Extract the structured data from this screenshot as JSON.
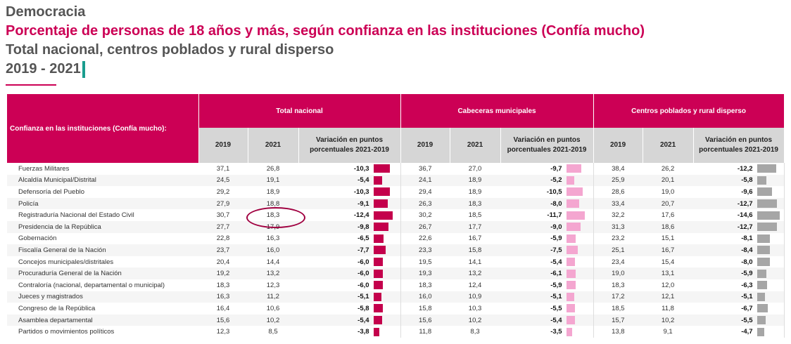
{
  "header": {
    "section": "Democracia",
    "title": "Porcentaje de personas de 18 años y más, según confianza en las instituciones (Confía mucho)",
    "subtitle": "Total nacional, centros poblados y rural disperso",
    "period": "2019 - 2021"
  },
  "table": {
    "row_header": "Confianza en las instituciones (Confía mucho):",
    "groups": [
      "Total nacional",
      "Cabeceras municipales",
      "Centros poblados y rural disperso"
    ],
    "col_2019": "2019",
    "col_2021": "2021",
    "col_var": "Variación en puntos porcentuales 2021-2019",
    "bar_colors": [
      "#c4004c",
      "#f4a6d0",
      "#a6a6a6"
    ],
    "rows": [
      {
        "name": "Fuerzas Militares",
        "t": [
          "37,1",
          "26,8",
          "-10,3"
        ],
        "c": [
          "36,7",
          "27,0",
          "-9,7"
        ],
        "r": [
          "38,4",
          "26,2",
          "-12,2"
        ]
      },
      {
        "name": "Alcaldía Municipal/Distrital",
        "t": [
          "24,5",
          "19,1",
          "-5,4"
        ],
        "c": [
          "24,1",
          "18,9",
          "-5,2"
        ],
        "r": [
          "25,9",
          "20,1",
          "-5,8"
        ]
      },
      {
        "name": "Defensoría del Pueblo",
        "t": [
          "29,2",
          "18,9",
          "-10,3"
        ],
        "c": [
          "29,4",
          "18,9",
          "-10,5"
        ],
        "r": [
          "28,6",
          "19,0",
          "-9,6"
        ]
      },
      {
        "name": "Policía",
        "t": [
          "27,9",
          "18,8",
          "-9,1"
        ],
        "c": [
          "26,3",
          "18,3",
          "-8,0"
        ],
        "r": [
          "33,4",
          "20,7",
          "-12,7"
        ]
      },
      {
        "name": "Registraduría Nacional del Estado Civil",
        "t": [
          "30,7",
          "18,3",
          "-12,4"
        ],
        "c": [
          "30,2",
          "18,5",
          "-11,7"
        ],
        "r": [
          "32,2",
          "17,6",
          "-14,6"
        ]
      },
      {
        "name": "Presidencia de la República",
        "t": [
          "27,7",
          "17,9",
          "-9,8"
        ],
        "c": [
          "26,7",
          "17,7",
          "-9,0"
        ],
        "r": [
          "31,3",
          "18,6",
          "-12,7"
        ]
      },
      {
        "name": "Gobernación",
        "t": [
          "22,8",
          "16,3",
          "-6,5"
        ],
        "c": [
          "22,6",
          "16,7",
          "-5,9"
        ],
        "r": [
          "23,2",
          "15,1",
          "-8,1"
        ]
      },
      {
        "name": "Fiscalía General de la Nación",
        "t": [
          "23,7",
          "16,0",
          "-7,7"
        ],
        "c": [
          "23,3",
          "15,8",
          "-7,5"
        ],
        "r": [
          "25,1",
          "16,7",
          "-8,4"
        ]
      },
      {
        "name": "Concejos municipales/distritales",
        "t": [
          "20,4",
          "14,4",
          "-6,0"
        ],
        "c": [
          "19,5",
          "14,1",
          "-5,4"
        ],
        "r": [
          "23,4",
          "15,4",
          "-8,0"
        ]
      },
      {
        "name": "Procuraduría General de la Nación",
        "t": [
          "19,2",
          "13,2",
          "-6,0"
        ],
        "c": [
          "19,3",
          "13,2",
          "-6,1"
        ],
        "r": [
          "19,0",
          "13,1",
          "-5,9"
        ]
      },
      {
        "name": "Contraloría (nacional, departamental o municipal)",
        "t": [
          "18,3",
          "12,3",
          "-6,0"
        ],
        "c": [
          "18,3",
          "12,4",
          "-5,9"
        ],
        "r": [
          "18,3",
          "12,0",
          "-6,3"
        ]
      },
      {
        "name": "Jueces y magistrados",
        "t": [
          "16,3",
          "11,2",
          "-5,1"
        ],
        "c": [
          "16,0",
          "10,9",
          "-5,1"
        ],
        "r": [
          "17,2",
          "12,1",
          "-5,1"
        ]
      },
      {
        "name": "Congreso de la República",
        "t": [
          "16,4",
          "10,6",
          "-5,8"
        ],
        "c": [
          "15,8",
          "10,3",
          "-5,5"
        ],
        "r": [
          "18,5",
          "11,8",
          "-6,7"
        ]
      },
      {
        "name": "Asamblea departamental",
        "t": [
          "15,6",
          "10,2",
          "-5,4"
        ],
        "c": [
          "15,6",
          "10,2",
          "-5,4"
        ],
        "r": [
          "15,7",
          "10,2",
          "-5,5"
        ]
      },
      {
        "name": "Partidos o movimientos políticos",
        "t": [
          "12,3",
          "8,5",
          "-3,8"
        ],
        "c": [
          "11,8",
          "8,3",
          "-3,5"
        ],
        "r": [
          "13,8",
          "9,1",
          "-4,7"
        ]
      }
    ]
  }
}
